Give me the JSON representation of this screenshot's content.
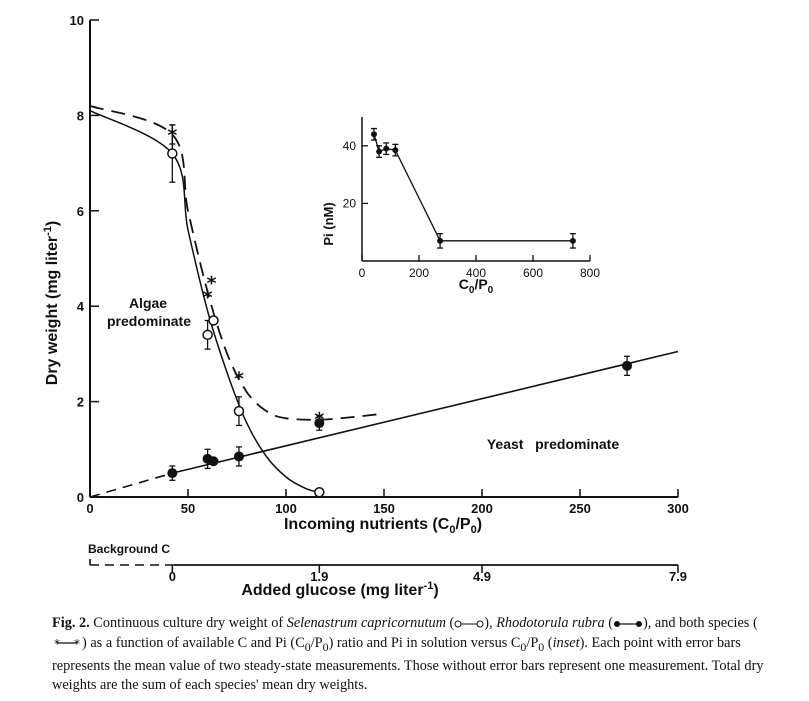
{
  "chart_data": [
    {
      "type": "line",
      "xlabel": "Incoming nutrients (C",
      "xlabel_sub1": "0",
      "xlabel_mid": "/P",
      "xlabel_sub2": "0",
      "xlabel_end": ")",
      "ylabel": "Dry weight (mg liter",
      "ylabel_sup": "-1",
      "ylabel_end": ")",
      "xlim": [
        0,
        300
      ],
      "ylim": [
        0,
        10
      ],
      "x_ticks": [
        0,
        50,
        100,
        150,
        200,
        250,
        300
      ],
      "y_ticks": [
        0,
        2,
        4,
        6,
        8,
        10
      ],
      "grid": false,
      "annotations": {
        "algae_line1": "Algae",
        "algae_line2": "predominate",
        "yeast": "Yeast   predominate"
      },
      "series": [
        {
          "marker": "open-circle",
          "style": "solid",
          "points": [
            {
              "x": 42,
              "y": 7.2,
              "err": 0.6
            },
            {
              "x": 60,
              "y": 3.4,
              "err": 0.3
            },
            {
              "x": 63,
              "y": 3.7
            },
            {
              "x": 76,
              "y": 1.8,
              "err": 0.3
            },
            {
              "x": 117,
              "y": 0.1
            }
          ],
          "curve": [
            [
              0,
              8.1
            ],
            [
              42,
              7.2
            ],
            [
              50,
              5.6
            ],
            [
              60,
              3.9
            ],
            [
              70,
              2.6
            ],
            [
              80,
              1.55
            ],
            [
              90,
              0.85
            ],
            [
              100,
              0.42
            ],
            [
              110,
              0.18
            ],
            [
              117,
              0.1
            ]
          ]
        },
        {
          "marker": "star",
          "style": "dashed",
          "points": [
            {
              "x": 42,
              "y": 7.6,
              "err": 0.2
            },
            {
              "x": 60,
              "y": 4.2
            },
            {
              "x": 62,
              "y": 4.5
            },
            {
              "x": 76,
              "y": 2.5
            },
            {
              "x": 117,
              "y": 1.65
            }
          ],
          "curve": [
            [
              0,
              8.2
            ],
            [
              42,
              7.6
            ],
            [
              50,
              6.0
            ],
            [
              60,
              4.3
            ],
            [
              70,
              3.0
            ],
            [
              80,
              2.2
            ],
            [
              90,
              1.8
            ],
            [
              100,
              1.65
            ],
            [
              117,
              1.62
            ],
            [
              135,
              1.68
            ],
            [
              150,
              1.75
            ]
          ]
        },
        {
          "marker": "filled-circle",
          "style": "solid",
          "points": [
            {
              "x": 42,
              "y": 0.5,
              "err": 0.15
            },
            {
              "x": 60,
              "y": 0.8,
              "err": 0.2
            },
            {
              "x": 63,
              "y": 0.75
            },
            {
              "x": 76,
              "y": 0.85,
              "err": 0.2
            },
            {
              "x": 117,
              "y": 1.55,
              "err": 0.15
            },
            {
              "x": 274,
              "y": 2.75,
              "err": 0.2
            }
          ],
          "curve": [
            [
              0,
              0.0
            ],
            [
              42,
              0.5
            ],
            [
              300,
              3.05
            ]
          ]
        }
      ]
    },
    {
      "type": "line",
      "inset": true,
      "xlabel": "C",
      "xlabel_sub1": "0",
      "xlabel_mid": "/P",
      "xlabel_sub2": "0",
      "ylabel": "Pi (nM)",
      "xlim": [
        0,
        800
      ],
      "ylim": [
        0,
        50
      ],
      "x_ticks": [
        0,
        200,
        400,
        600,
        800
      ],
      "y_ticks": [
        20,
        40
      ],
      "y_tick_zero": 0,
      "series": [
        {
          "marker": "filled-circle",
          "style": "solid",
          "points": [
            {
              "x": 42,
              "y": 44,
              "err": 2
            },
            {
              "x": 60,
              "y": 38,
              "err": 2
            },
            {
              "x": 85,
              "y": 39,
              "err": 2
            },
            {
              "x": 117,
              "y": 38.5,
              "err": 2
            },
            {
              "x": 274,
              "y": 7,
              "err": 2.5
            },
            {
              "x": 740,
              "y": 7,
              "err": 2.5
            }
          ]
        }
      ]
    },
    {
      "type": "axis",
      "label": "Added glucose (mg liter",
      "label_sup": "-1",
      "label_end": ")",
      "background_label": "Background C",
      "zero_label": "0",
      "ticks": [
        {
          "label": "0",
          "nutrient_x": 42
        },
        {
          "label": "1.9",
          "nutrient_x": 117
        },
        {
          "label": "4.9",
          "nutrient_x": 200
        },
        {
          "label": "7.9",
          "nutrient_x": 300
        }
      ]
    }
  ],
  "caption": {
    "label": "Fig. 2.",
    "t1": " Continuous culture dry weight of ",
    "sp1": "Selenastrum capricornutum",
    "t2": " (",
    "t3": "), ",
    "sp2": "Rhodotorula rubra",
    "t4": " (",
    "t5": "), and both species (",
    "t6": ") as a function of available C and Pi (C",
    "s1": "0",
    "t7": "/P",
    "s2": "0",
    "t8": ") ratio and Pi in solution versus C",
    "s3": "0",
    "t9": "/P",
    "s4": "0",
    "t10": " (",
    "inset": "inset",
    "t11": "). Each point with error bars represents the mean value of two steady-state measurements. Those without error bars represent one measurement. Total dry weights are the sum of each species' mean dry weights."
  }
}
